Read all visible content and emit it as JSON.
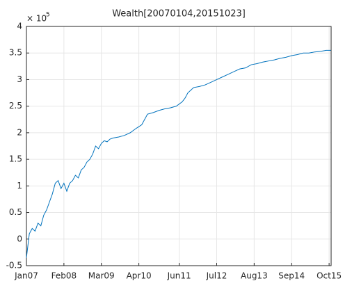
{
  "chart_data": {
    "type": "line",
    "title": "Wealth[20070104,20151023]",
    "y_scale_base": "× 10",
    "y_scale_power": "5",
    "x": [
      0,
      1,
      2,
      3,
      4,
      5,
      6,
      7,
      8,
      9,
      10,
      11,
      12,
      13,
      14,
      15,
      16,
      17,
      18,
      19,
      20,
      21,
      22,
      23,
      24,
      25,
      26,
      27,
      28,
      29,
      30,
      32,
      34,
      36,
      38,
      40,
      41,
      42,
      44,
      46,
      48,
      50,
      52,
      54,
      55,
      56,
      57,
      58,
      60,
      62,
      64,
      66,
      68,
      70,
      72,
      74,
      76,
      78,
      80,
      82,
      84,
      86,
      88,
      90,
      92,
      94,
      96,
      98,
      100,
      102,
      104,
      105.6
    ],
    "series": [
      {
        "name": "Wealth",
        "color": "#0072bd",
        "values": [
          -0.35,
          0.1,
          0.2,
          0.15,
          0.3,
          0.25,
          0.45,
          0.55,
          0.7,
          0.85,
          1.05,
          1.1,
          0.95,
          1.05,
          0.9,
          1.05,
          1.1,
          1.2,
          1.15,
          1.3,
          1.35,
          1.45,
          1.5,
          1.6,
          1.75,
          1.7,
          1.8,
          1.85,
          1.83,
          1.88,
          1.9,
          1.92,
          1.95,
          2.0,
          2.08,
          2.15,
          2.25,
          2.35,
          2.38,
          2.42,
          2.45,
          2.47,
          2.5,
          2.58,
          2.65,
          2.75,
          2.8,
          2.85,
          2.87,
          2.9,
          2.95,
          3.0,
          3.05,
          3.1,
          3.15,
          3.2,
          3.22,
          3.28,
          3.3,
          3.33,
          3.35,
          3.37,
          3.4,
          3.42,
          3.45,
          3.47,
          3.5,
          3.5,
          3.52,
          3.53,
          3.55,
          3.55
        ]
      }
    ],
    "xlim": [
      0,
      105.7
    ],
    "xticks": [
      {
        "value": 0,
        "label": "Jan07"
      },
      {
        "value": 13,
        "label": "Feb08"
      },
      {
        "value": 26,
        "label": "Mar09"
      },
      {
        "value": 39,
        "label": "Apr10"
      },
      {
        "value": 53,
        "label": "Jun11"
      },
      {
        "value": 66,
        "label": "Jul12"
      },
      {
        "value": 79,
        "label": "Aug13"
      },
      {
        "value": 92,
        "label": "Sep14"
      },
      {
        "value": 105,
        "label": "Oct15"
      }
    ],
    "ylim": [
      -0.5,
      4
    ],
    "yticks": [
      -0.5,
      0,
      0.5,
      1,
      1.5,
      2,
      2.5,
      3,
      3.5,
      4
    ],
    "grid": true
  }
}
